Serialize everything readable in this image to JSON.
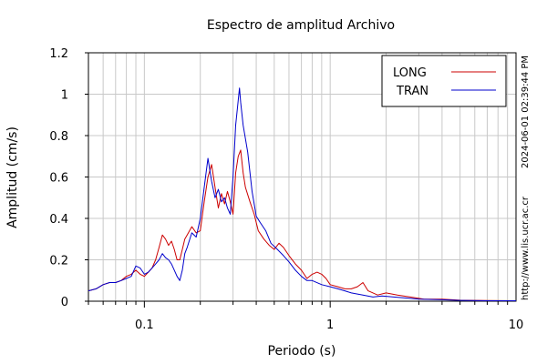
{
  "chart_data": {
    "type": "line",
    "title": "Espectro de amplitud Archivo",
    "xlabel": "Periodo (s)",
    "ylabel": "Amplitud (cm/s)",
    "xscale": "log",
    "xlim": [
      0.05,
      10
    ],
    "ylim": [
      0,
      1.2
    ],
    "x_ticks": [
      {
        "value": 0.1,
        "label": "0.1"
      },
      {
        "value": 1,
        "label": "1"
      },
      {
        "value": 10,
        "label": "10"
      }
    ],
    "y_ticks": [
      {
        "value": 0,
        "label": "0"
      },
      {
        "value": 0.2,
        "label": "0.2"
      },
      {
        "value": 0.4,
        "label": "0.4"
      },
      {
        "value": 0.6,
        "label": "0.6"
      },
      {
        "value": 0.8,
        "label": "0.8"
      },
      {
        "value": 1.0,
        "label": "1"
      },
      {
        "value": 1.2,
        "label": "1.2"
      }
    ],
    "grid": true,
    "legend_position": "top-right",
    "series": [
      {
        "name": "LONG",
        "color": "#cc0000",
        "points": [
          [
            0.05,
            0.05
          ],
          [
            0.055,
            0.06
          ],
          [
            0.06,
            0.08
          ],
          [
            0.065,
            0.09
          ],
          [
            0.07,
            0.09
          ],
          [
            0.075,
            0.1
          ],
          [
            0.08,
            0.12
          ],
          [
            0.085,
            0.13
          ],
          [
            0.09,
            0.15
          ],
          [
            0.095,
            0.13
          ],
          [
            0.1,
            0.12
          ],
          [
            0.105,
            0.14
          ],
          [
            0.11,
            0.16
          ],
          [
            0.115,
            0.2
          ],
          [
            0.12,
            0.26
          ],
          [
            0.125,
            0.32
          ],
          [
            0.13,
            0.3
          ],
          [
            0.135,
            0.27
          ],
          [
            0.14,
            0.29
          ],
          [
            0.145,
            0.25
          ],
          [
            0.15,
            0.2
          ],
          [
            0.155,
            0.2
          ],
          [
            0.16,
            0.25
          ],
          [
            0.165,
            0.3
          ],
          [
            0.17,
            0.32
          ],
          [
            0.18,
            0.36
          ],
          [
            0.19,
            0.33
          ],
          [
            0.2,
            0.34
          ],
          [
            0.21,
            0.48
          ],
          [
            0.22,
            0.6
          ],
          [
            0.23,
            0.66
          ],
          [
            0.24,
            0.55
          ],
          [
            0.25,
            0.45
          ],
          [
            0.26,
            0.52
          ],
          [
            0.27,
            0.47
          ],
          [
            0.28,
            0.53
          ],
          [
            0.29,
            0.48
          ],
          [
            0.3,
            0.42
          ],
          [
            0.31,
            0.62
          ],
          [
            0.32,
            0.7
          ],
          [
            0.33,
            0.73
          ],
          [
            0.34,
            0.62
          ],
          [
            0.35,
            0.55
          ],
          [
            0.37,
            0.48
          ],
          [
            0.39,
            0.42
          ],
          [
            0.41,
            0.34
          ],
          [
            0.44,
            0.3
          ],
          [
            0.47,
            0.27
          ],
          [
            0.5,
            0.25
          ],
          [
            0.53,
            0.28
          ],
          [
            0.56,
            0.26
          ],
          [
            0.6,
            0.22
          ],
          [
            0.65,
            0.18
          ],
          [
            0.7,
            0.15
          ],
          [
            0.75,
            0.11
          ],
          [
            0.8,
            0.13
          ],
          [
            0.85,
            0.14
          ],
          [
            0.9,
            0.13
          ],
          [
            0.95,
            0.11
          ],
          [
            1.0,
            0.08
          ],
          [
            1.1,
            0.07
          ],
          [
            1.2,
            0.06
          ],
          [
            1.3,
            0.06
          ],
          [
            1.4,
            0.07
          ],
          [
            1.5,
            0.09
          ],
          [
            1.6,
            0.05
          ],
          [
            1.8,
            0.03
          ],
          [
            2.0,
            0.04
          ],
          [
            2.3,
            0.03
          ],
          [
            2.7,
            0.02
          ],
          [
            3.2,
            0.01
          ],
          [
            4.0,
            0.01
          ],
          [
            5.0,
            0.005
          ],
          [
            7.0,
            0.003
          ],
          [
            10.0,
            0.002
          ]
        ]
      },
      {
        "name": "TRAN",
        "color": "#0000cc",
        "points": [
          [
            0.05,
            0.05
          ],
          [
            0.055,
            0.06
          ],
          [
            0.06,
            0.08
          ],
          [
            0.065,
            0.09
          ],
          [
            0.07,
            0.09
          ],
          [
            0.075,
            0.1
          ],
          [
            0.08,
            0.11
          ],
          [
            0.085,
            0.12
          ],
          [
            0.09,
            0.17
          ],
          [
            0.095,
            0.16
          ],
          [
            0.1,
            0.13
          ],
          [
            0.105,
            0.14
          ],
          [
            0.11,
            0.16
          ],
          [
            0.115,
            0.18
          ],
          [
            0.12,
            0.2
          ],
          [
            0.125,
            0.23
          ],
          [
            0.13,
            0.21
          ],
          [
            0.135,
            0.2
          ],
          [
            0.14,
            0.18
          ],
          [
            0.145,
            0.15
          ],
          [
            0.15,
            0.12
          ],
          [
            0.155,
            0.1
          ],
          [
            0.16,
            0.15
          ],
          [
            0.165,
            0.23
          ],
          [
            0.17,
            0.26
          ],
          [
            0.18,
            0.33
          ],
          [
            0.19,
            0.31
          ],
          [
            0.2,
            0.4
          ],
          [
            0.21,
            0.55
          ],
          [
            0.22,
            0.69
          ],
          [
            0.23,
            0.58
          ],
          [
            0.24,
            0.5
          ],
          [
            0.25,
            0.54
          ],
          [
            0.26,
            0.48
          ],
          [
            0.27,
            0.5
          ],
          [
            0.28,
            0.45
          ],
          [
            0.29,
            0.42
          ],
          [
            0.3,
            0.6
          ],
          [
            0.31,
            0.85
          ],
          [
            0.32,
            0.97
          ],
          [
            0.325,
            1.03
          ],
          [
            0.33,
            0.96
          ],
          [
            0.34,
            0.85
          ],
          [
            0.36,
            0.72
          ],
          [
            0.38,
            0.53
          ],
          [
            0.4,
            0.41
          ],
          [
            0.42,
            0.38
          ],
          [
            0.45,
            0.34
          ],
          [
            0.48,
            0.28
          ],
          [
            0.52,
            0.25
          ],
          [
            0.56,
            0.22
          ],
          [
            0.6,
            0.19
          ],
          [
            0.65,
            0.15
          ],
          [
            0.7,
            0.12
          ],
          [
            0.75,
            0.1
          ],
          [
            0.8,
            0.1
          ],
          [
            0.9,
            0.08
          ],
          [
            1.0,
            0.07
          ],
          [
            1.1,
            0.06
          ],
          [
            1.2,
            0.05
          ],
          [
            1.3,
            0.04
          ],
          [
            1.5,
            0.03
          ],
          [
            1.7,
            0.02
          ],
          [
            1.9,
            0.025
          ],
          [
            2.2,
            0.02
          ],
          [
            2.6,
            0.015
          ],
          [
            3.0,
            0.01
          ],
          [
            4.0,
            0.007
          ],
          [
            5.0,
            0.004
          ],
          [
            7.0,
            0.002
          ],
          [
            10.0,
            0.002
          ]
        ]
      }
    ],
    "side_text_top": "2024-06-01 02:39:44 PM",
    "side_text_bottom": "http://www.lis.ucr.ac.cr"
  }
}
